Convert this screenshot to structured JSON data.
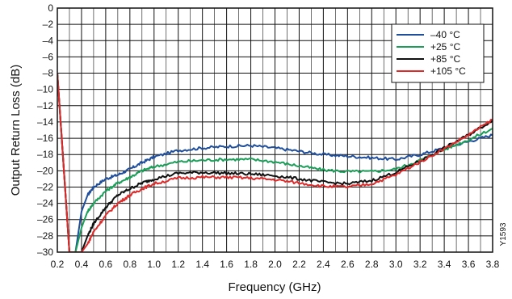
{
  "chart_data": {
    "type": "line",
    "title": "",
    "xlabel": "Frequency (GHz)",
    "ylabel": "Output Return Loss (dB)",
    "xlim": [
      0.2,
      3.8
    ],
    "ylim": [
      -30,
      0
    ],
    "x_ticks": [
      0.2,
      0.4,
      0.6,
      0.8,
      1.0,
      1.2,
      1.4,
      1.6,
      1.8,
      2.0,
      2.2,
      2.4,
      2.6,
      2.8,
      3.0,
      3.2,
      3.4,
      3.6,
      3.8
    ],
    "x_tick_labels": [
      "0.2",
      "0.4",
      "0.6",
      "0.8",
      "1.0",
      "1.2",
      "1.4",
      "1.6",
      "1.8",
      "2.0",
      "2.2",
      "2.4",
      "2.6",
      "2.8",
      "3.0",
      "3.2",
      "3.4",
      "3.6",
      "3.8"
    ],
    "y_ticks": [
      0,
      -2,
      -4,
      -6,
      -8,
      -10,
      -12,
      -14,
      -16,
      -18,
      -20,
      -22,
      -24,
      -26,
      -28,
      -30
    ],
    "y_tick_labels": [
      "0",
      "–2",
      "–4",
      "–6",
      "–8",
      "–10",
      "–12",
      "–14",
      "–16",
      "–18",
      "–20",
      "–22",
      "–24",
      "–26",
      "–28",
      "–30"
    ],
    "grid": true,
    "legend_position": "top-right",
    "series": [
      {
        "name": "–40 °C",
        "color": "#1f4e9c",
        "x": [
          0.2,
          0.25,
          0.3,
          0.35,
          0.4,
          0.45,
          0.5,
          0.6,
          0.7,
          0.8,
          0.9,
          1.0,
          1.2,
          1.4,
          1.6,
          1.8,
          2.0,
          2.2,
          2.4,
          2.6,
          2.8,
          3.0,
          3.2,
          3.4,
          3.6,
          3.8
        ],
        "y": [
          -8,
          -19,
          -30,
          -30,
          -25,
          -23,
          -22,
          -21,
          -20.5,
          -19.8,
          -19,
          -18.3,
          -17.5,
          -17.2,
          -17.0,
          -16.9,
          -17.2,
          -17.6,
          -18.0,
          -18.2,
          -18.4,
          -18.6,
          -18.0,
          -17.2,
          -16.4,
          -15.6
        ]
      },
      {
        "name": "+25 °C",
        "color": "#1a9e58",
        "x": [
          0.2,
          0.25,
          0.3,
          0.35,
          0.4,
          0.45,
          0.5,
          0.6,
          0.7,
          0.8,
          0.9,
          1.0,
          1.2,
          1.4,
          1.6,
          1.8,
          2.0,
          2.2,
          2.4,
          2.6,
          2.8,
          3.0,
          3.2,
          3.4,
          3.6,
          3.8
        ],
        "y": [
          -8,
          -19,
          -30,
          -30,
          -27,
          -25,
          -24,
          -22.5,
          -21.5,
          -20.8,
          -20,
          -19.5,
          -18.9,
          -18.7,
          -18.6,
          -18.6,
          -18.9,
          -19.4,
          -19.9,
          -20.1,
          -20.1,
          -19.8,
          -18.7,
          -17.4,
          -16.2,
          -14.8
        ]
      },
      {
        "name": "+85 °C",
        "color": "#111111",
        "x": [
          0.2,
          0.25,
          0.3,
          0.35,
          0.4,
          0.45,
          0.5,
          0.6,
          0.7,
          0.8,
          0.9,
          1.0,
          1.2,
          1.4,
          1.6,
          1.8,
          2.0,
          2.2,
          2.4,
          2.6,
          2.8,
          3.0,
          3.2,
          3.4,
          3.6,
          3.8
        ],
        "y": [
          -8,
          -19,
          -30,
          -30,
          -30,
          -28,
          -26.5,
          -24.5,
          -23,
          -22.2,
          -21.5,
          -21.0,
          -20.3,
          -20.2,
          -20.3,
          -20.4,
          -20.6,
          -21.0,
          -21.4,
          -21.6,
          -21.2,
          -20.2,
          -18.8,
          -17.2,
          -15.6,
          -13.8
        ]
      },
      {
        "name": "+105 °C",
        "color": "#e02a2a",
        "x": [
          0.2,
          0.25,
          0.3,
          0.35,
          0.4,
          0.45,
          0.5,
          0.6,
          0.7,
          0.8,
          0.9,
          1.0,
          1.2,
          1.4,
          1.6,
          1.8,
          2.0,
          2.2,
          2.4,
          2.6,
          2.8,
          3.0,
          3.2,
          3.4,
          3.6,
          3.8
        ],
        "y": [
          -8,
          -19,
          -30,
          -30,
          -30,
          -29,
          -27.5,
          -25.5,
          -24,
          -23,
          -22.2,
          -21.6,
          -20.9,
          -20.8,
          -20.8,
          -20.9,
          -21.1,
          -21.5,
          -21.9,
          -22.0,
          -21.6,
          -20.5,
          -18.9,
          -17.3,
          -15.6,
          -13.7
        ]
      }
    ]
  },
  "watermark": "Y1593"
}
